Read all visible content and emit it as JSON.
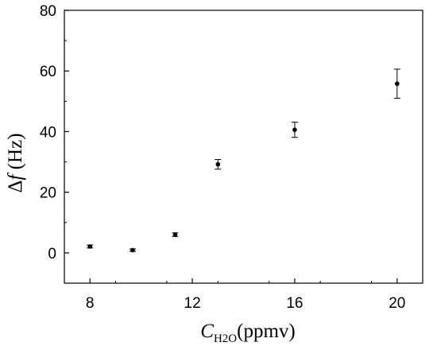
{
  "chart_data": {
    "type": "scatter",
    "title": "",
    "xlabel": {
      "main": "C",
      "sub": "H2O",
      "unit": "(ppmv)"
    },
    "ylabel": {
      "delta": "Δ",
      "var": "f",
      "unit": " (Hz)"
    },
    "xlim": [
      7,
      21
    ],
    "ylim": [
      -10,
      80
    ],
    "xticks": [
      8,
      12,
      16,
      20
    ],
    "yticks": [
      0,
      20,
      40,
      60,
      80
    ],
    "grid": false,
    "series": [
      {
        "x": [
          8,
          9.67,
          11.33,
          13,
          16,
          20
        ],
        "y": [
          2.1,
          0.9,
          6.0,
          29.2,
          40.6,
          55.8
        ],
        "err": [
          0.5,
          0.4,
          0.6,
          1.6,
          2.5,
          4.8
        ]
      }
    ]
  }
}
